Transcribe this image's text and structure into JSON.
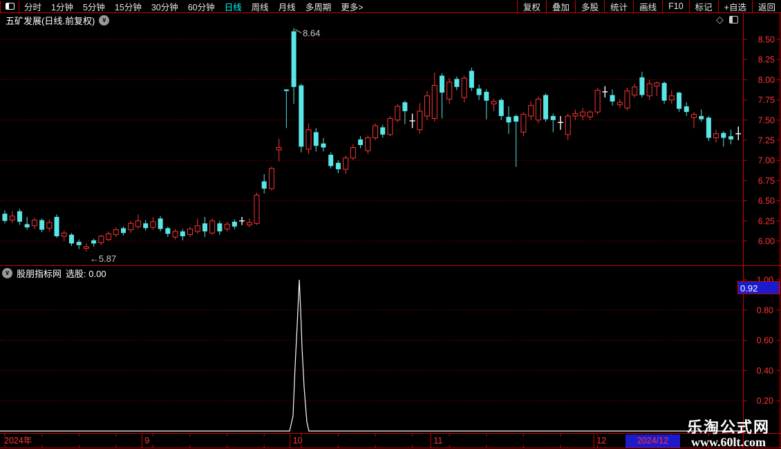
{
  "topbar": {
    "left_items": [
      {
        "label": "分时",
        "active": false
      },
      {
        "label": "1分钟",
        "active": false
      },
      {
        "label": "5分钟",
        "active": false
      },
      {
        "label": "15分钟",
        "active": false
      },
      {
        "label": "30分钟",
        "active": false
      },
      {
        "label": "60分钟",
        "active": false
      },
      {
        "label": "日线",
        "active": true
      },
      {
        "label": "周线",
        "active": false
      },
      {
        "label": "月线",
        "active": false
      },
      {
        "label": "多周期",
        "active": false
      },
      {
        "label": "更多>",
        "active": false
      }
    ],
    "right_items": [
      "复权",
      "叠加",
      "多股",
      "统计",
      "画线",
      "F10",
      "标记",
      "+自选",
      "返回"
    ]
  },
  "title": {
    "text": "五矿发展(日线.前复权)"
  },
  "indicator_header": {
    "source": "股朋指标网",
    "signal_label": "选股:",
    "signal_value": "0.00"
  },
  "watermark": {
    "line1": "乐淘公式网",
    "line2": "www.60lt.com"
  },
  "colors": {
    "up": "#ff3434",
    "down": "#5ae6e6",
    "doji": "#ffffff",
    "axis_text": "#ff3434",
    "grid": "#c80000",
    "frame": "#d00000",
    "accent_active": "#00ffff",
    "value_box_bg": "#1b1bcd",
    "watermark": "#ffffff"
  },
  "chart_data": [
    {
      "type": "candlestick",
      "symbol": "五矿发展",
      "period": "日线",
      "adjust": "前复权",
      "ylim": [
        5.7,
        8.75
      ],
      "y_ticks": [
        "8.50",
        "8.25",
        "8.00",
        "7.75",
        "7.50",
        "7.25",
        "7.00",
        "6.75",
        "6.50",
        "6.25",
        "6.00"
      ],
      "grid_levels": [
        8.5,
        8.0,
        7.5,
        7.0,
        6.5,
        6.0
      ],
      "annotations": [
        {
          "text": "8.64",
          "candle": 39,
          "position": "high"
        },
        {
          "text": "←5.87",
          "candle": 11,
          "position": "low"
        }
      ],
      "x_axis": {
        "start_label": "2024年",
        "end_label": "2024/12",
        "month_ticks": [
          {
            "label": "9",
            "index": 19
          },
          {
            "label": "10",
            "index": 39
          },
          {
            "label": "11",
            "index": 58
          },
          {
            "label": "12",
            "index": 80
          }
        ]
      },
      "candles": [
        [
          6.34,
          6.38,
          6.22,
          6.25
        ],
        [
          6.26,
          6.37,
          6.22,
          6.31
        ],
        [
          6.37,
          6.4,
          6.2,
          6.24
        ],
        [
          6.21,
          6.3,
          6.14,
          6.17
        ],
        [
          6.19,
          6.29,
          6.15,
          6.26
        ],
        [
          6.26,
          6.28,
          6.11,
          6.14
        ],
        [
          6.16,
          6.27,
          6.12,
          6.23
        ],
        [
          6.3,
          6.33,
          6.04,
          6.06
        ],
        [
          6.06,
          6.13,
          6.0,
          6.1
        ],
        [
          6.08,
          6.1,
          5.94,
          5.97
        ],
        [
          5.99,
          6.02,
          5.9,
          5.95
        ],
        [
          5.91,
          5.97,
          5.87,
          5.93
        ],
        [
          6.01,
          6.03,
          5.93,
          5.97
        ],
        [
          5.98,
          6.08,
          5.95,
          6.06
        ],
        [
          6.02,
          6.12,
          6.0,
          6.09
        ],
        [
          6.08,
          6.17,
          6.05,
          6.14
        ],
        [
          6.16,
          6.18,
          6.07,
          6.1
        ],
        [
          6.14,
          6.25,
          6.1,
          6.22
        ],
        [
          6.18,
          6.33,
          6.15,
          6.25
        ],
        [
          6.22,
          6.26,
          6.13,
          6.16
        ],
        [
          6.17,
          6.3,
          6.14,
          6.24
        ],
        [
          6.28,
          6.31,
          6.12,
          6.15
        ],
        [
          6.16,
          6.18,
          6.05,
          6.09
        ],
        [
          6.05,
          6.15,
          6.02,
          6.12
        ],
        [
          6.12,
          6.15,
          6.01,
          6.06
        ],
        [
          6.08,
          6.18,
          6.05,
          6.15
        ],
        [
          6.12,
          6.28,
          6.09,
          6.19
        ],
        [
          6.22,
          6.3,
          6.05,
          6.12
        ],
        [
          6.1,
          6.28,
          6.08,
          6.25
        ],
        [
          6.22,
          6.25,
          6.08,
          6.12
        ],
        [
          6.15,
          6.24,
          6.12,
          6.21
        ],
        [
          6.24,
          6.27,
          6.15,
          6.18
        ],
        [
          6.25,
          6.3,
          6.2,
          6.25,
          "w"
        ],
        [
          6.2,
          6.28,
          6.17,
          6.23
        ],
        [
          6.22,
          6.6,
          6.2,
          6.57
        ],
        [
          6.74,
          6.83,
          6.59,
          6.65
        ],
        [
          6.65,
          6.92,
          6.63,
          6.9
        ],
        [
          7.13,
          7.27,
          6.99,
          7.16
        ],
        [
          7.88,
          7.88,
          7.4,
          7.86
        ],
        [
          8.6,
          8.64,
          7.7,
          7.91
        ],
        [
          7.93,
          7.95,
          7.1,
          7.17
        ],
        [
          7.14,
          7.46,
          7.08,
          7.38
        ],
        [
          7.35,
          7.4,
          7.11,
          7.18
        ],
        [
          7.21,
          7.28,
          7.11,
          7.16
        ],
        [
          7.07,
          7.1,
          6.9,
          6.93
        ],
        [
          6.97,
          7.0,
          6.84,
          6.89
        ],
        [
          6.89,
          7.06,
          6.83,
          7.03
        ],
        [
          7.03,
          7.2,
          7.0,
          7.16
        ],
        [
          7.26,
          7.3,
          7.15,
          7.19
        ],
        [
          7.12,
          7.31,
          7.08,
          7.28
        ],
        [
          7.28,
          7.46,
          7.25,
          7.43
        ],
        [
          7.41,
          7.44,
          7.28,
          7.32
        ],
        [
          7.32,
          7.55,
          7.3,
          7.52
        ],
        [
          7.5,
          7.7,
          7.47,
          7.67
        ],
        [
          7.72,
          7.74,
          7.45,
          7.61
        ],
        [
          7.49,
          7.58,
          7.4,
          7.49,
          "w"
        ],
        [
          7.38,
          7.71,
          7.33,
          7.61
        ],
        [
          7.55,
          7.86,
          7.5,
          7.8
        ],
        [
          7.52,
          8.09,
          7.48,
          7.93
        ],
        [
          8.05,
          8.08,
          7.52,
          7.84
        ],
        [
          7.76,
          8.02,
          7.7,
          7.97
        ],
        [
          8.01,
          8.04,
          7.87,
          7.91
        ],
        [
          7.78,
          8.05,
          7.72,
          8.02
        ],
        [
          8.11,
          8.15,
          7.86,
          7.9
        ],
        [
          7.89,
          7.94,
          7.75,
          7.81
        ],
        [
          7.85,
          7.88,
          7.51,
          7.74
        ],
        [
          7.7,
          7.76,
          7.61,
          7.73
        ],
        [
          7.75,
          7.77,
          7.5,
          7.55
        ],
        [
          7.54,
          7.67,
          7.33,
          7.47
        ],
        [
          7.55,
          7.57,
          6.92,
          7.48
        ],
        [
          7.35,
          7.6,
          7.3,
          7.57
        ],
        [
          7.55,
          7.73,
          7.5,
          7.68
        ],
        [
          7.5,
          7.79,
          7.46,
          7.76
        ],
        [
          7.81,
          7.83,
          7.48,
          7.51
        ],
        [
          7.55,
          7.58,
          7.35,
          7.5
        ],
        [
          7.47,
          7.55,
          7.38,
          7.47,
          "w"
        ],
        [
          7.32,
          7.58,
          7.25,
          7.55
        ],
        [
          7.55,
          7.63,
          7.5,
          7.58
        ],
        [
          7.55,
          7.65,
          7.5,
          7.6
        ],
        [
          7.54,
          7.62,
          7.5,
          7.6
        ],
        [
          7.6,
          7.9,
          7.57,
          7.87
        ],
        [
          7.85,
          7.92,
          7.78,
          7.85,
          "w"
        ],
        [
          7.81,
          7.88,
          7.68,
          7.73
        ],
        [
          7.69,
          7.76,
          7.65,
          7.72
        ],
        [
          7.65,
          7.9,
          7.62,
          7.86
        ],
        [
          7.81,
          7.95,
          7.78,
          7.91
        ],
        [
          8.03,
          8.1,
          7.78,
          7.81
        ],
        [
          7.8,
          8.0,
          7.75,
          7.95
        ],
        [
          7.92,
          7.98,
          7.8,
          7.96
        ],
        [
          7.96,
          7.98,
          7.7,
          7.74
        ],
        [
          7.75,
          7.87,
          7.7,
          7.8
        ],
        [
          7.84,
          7.85,
          7.6,
          7.64
        ],
        [
          7.67,
          7.72,
          7.55,
          7.6
        ],
        [
          7.53,
          7.6,
          7.4,
          7.57
        ],
        [
          7.55,
          7.63,
          7.48,
          7.51
        ],
        [
          7.53,
          7.55,
          7.24,
          7.28
        ],
        [
          7.28,
          7.38,
          7.22,
          7.33
        ],
        [
          7.34,
          7.36,
          7.17,
          7.28
        ],
        [
          7.3,
          7.38,
          7.2,
          7.26
        ],
        [
          7.33,
          7.42,
          7.25,
          7.33,
          "w"
        ]
      ]
    },
    {
      "type": "line",
      "name": "选股",
      "current_value": "0.00",
      "marker_value": "0.92",
      "ylim": [
        0,
        1.09
      ],
      "y_ticks": [
        "1.00",
        "0.80",
        "0.60",
        "0.40",
        "0.20"
      ],
      "grid_levels": [
        0.8,
        0.6,
        0.4,
        0.2
      ],
      "baseline": 0,
      "spike_points": [
        [
          419,
          0
        ],
        [
          424,
          0.1
        ],
        [
          427,
          0.43
        ],
        [
          430,
          0.7
        ],
        [
          433,
          1.0
        ],
        [
          435,
          0.8
        ],
        [
          437,
          0.55
        ],
        [
          440,
          0.29
        ],
        [
          444,
          0.06
        ],
        [
          447,
          0
        ]
      ]
    }
  ]
}
